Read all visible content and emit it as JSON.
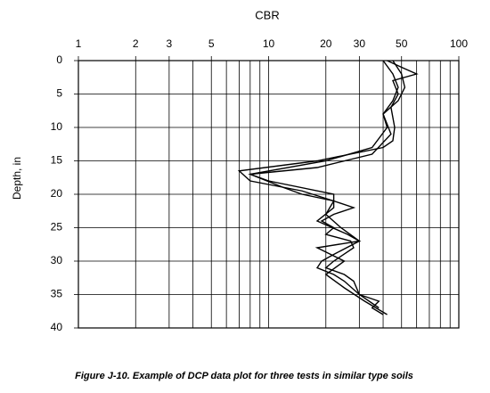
{
  "chart_data": {
    "type": "line",
    "title": "Figure J-10.  Example of DCP data plot for three tests in similar type soils",
    "x_label": "CBR",
    "y_label": "Depth, in",
    "x_log": true,
    "y_inverted": true,
    "grid": true,
    "xlim": [
      1,
      100
    ],
    "xticks": [
      1,
      2,
      3,
      5,
      10,
      20,
      30,
      50,
      100
    ],
    "x_minor_grid": [
      4,
      6,
      7,
      8,
      9,
      40,
      60,
      70,
      80,
      90
    ],
    "ylim": [
      0,
      40
    ],
    "yticks": [
      0,
      5,
      10,
      15,
      20,
      25,
      30,
      35,
      40
    ],
    "series": [
      {
        "color": "#000000",
        "x": [
          42,
          50,
          60,
          45,
          48,
          44,
          46,
          45,
          40,
          18,
          7,
          8,
          15,
          22,
          28,
          22,
          19,
          22,
          20,
          27,
          28,
          22,
          20,
          25,
          28,
          30,
          38,
          35,
          40
        ],
        "values": [
          0,
          1,
          2,
          3,
          5,
          7,
          10,
          12,
          13,
          15,
          16.5,
          18,
          19.5,
          21,
          22,
          23,
          24,
          25,
          26,
          27,
          28,
          30,
          31,
          32,
          33,
          35,
          36,
          37,
          38
        ]
      },
      {
        "color": "#000000",
        "x": [
          40,
          45,
          48,
          45,
          40,
          42,
          35,
          20,
          8,
          12,
          15,
          22,
          20,
          24,
          30,
          22,
          19,
          18,
          22,
          25,
          30,
          38
        ],
        "values": [
          0,
          2,
          4,
          6,
          8,
          10,
          13,
          15,
          17,
          19,
          20,
          21,
          23,
          25,
          27,
          29,
          30,
          31,
          32,
          33,
          35,
          37
        ]
      },
      {
        "color": "#000000",
        "x": [
          45,
          50,
          52,
          48,
          40,
          44,
          35,
          18,
          8,
          10,
          22,
          22,
          18,
          26,
          30,
          18,
          25,
          20,
          25,
          32,
          42
        ],
        "values": [
          0,
          2,
          4,
          6,
          8,
          11,
          14,
          16,
          17,
          18,
          20,
          22,
          24,
          26,
          27,
          28,
          30,
          32,
          34,
          36,
          38
        ]
      }
    ]
  }
}
